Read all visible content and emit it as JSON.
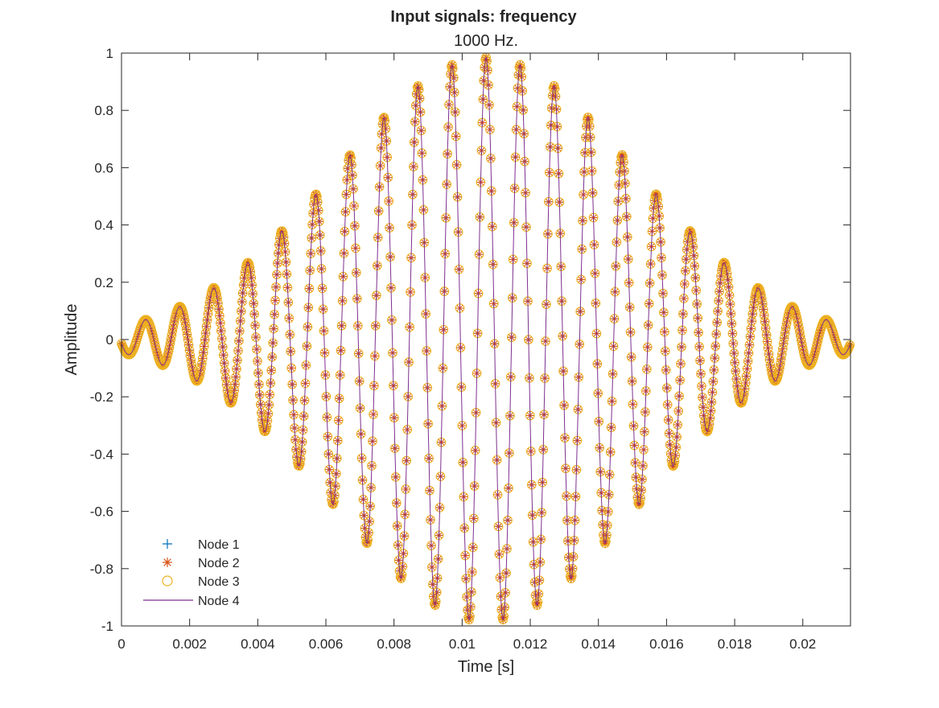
{
  "chart_data": {
    "type": "line",
    "title": "Input signals: frequency",
    "subtitle": "1000 Hz.",
    "xlabel": "Time [s]",
    "ylabel": "Amplitude",
    "xlim": [
      0,
      0.0214
    ],
    "ylim": [
      -1,
      1
    ],
    "xticks": [
      0,
      0.002,
      0.004,
      0.006,
      0.008,
      0.01,
      0.012,
      0.014,
      0.016,
      0.018,
      0.02
    ],
    "xtick_labels": [
      "0",
      "0.002",
      "0.004",
      "0.006",
      "0.008",
      "0.01",
      "0.012",
      "0.014",
      "0.016",
      "0.018",
      "0.02"
    ],
    "yticks": [
      -1,
      -0.8,
      -0.6,
      -0.4,
      -0.2,
      0,
      0.2,
      0.4,
      0.6,
      0.8,
      1
    ],
    "ytick_labels": [
      "-1",
      "-0.8",
      "-0.6",
      "-0.4",
      "-0.2",
      "0",
      "0.2",
      "0.4",
      "0.6",
      "0.8",
      "1"
    ],
    "grid": false,
    "legend_position": "bottom-left",
    "signal": {
      "description": "Gaussian-windowed 1000 Hz sinusoid, identical for all four nodes",
      "frequency_hz": 1000,
      "center_s": 0.0107,
      "sigma_s": 0.00434,
      "peak_amplitude": 0.985,
      "sample_rate_hz": 44100,
      "duration_s": 0.0214
    },
    "series": [
      {
        "name": "Node 1",
        "marker": "plus",
        "color": "#0072BD"
      },
      {
        "name": "Node 2",
        "marker": "asterisk",
        "color": "#D95319"
      },
      {
        "name": "Node 3",
        "marker": "circle",
        "color": "#EDB120"
      },
      {
        "name": "Node 4",
        "marker": "line",
        "color": "#7E2F8E"
      }
    ]
  }
}
